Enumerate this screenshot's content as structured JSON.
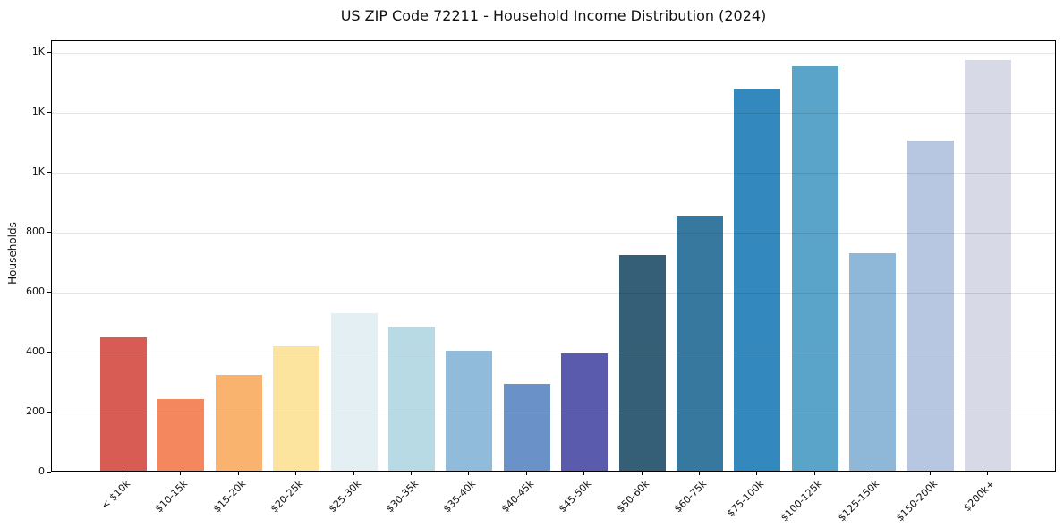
{
  "title": "US ZIP Code 72211 - Household Income Distribution (2024)",
  "chart_data": {
    "type": "bar",
    "title": "US ZIP Code 72211 - Household Income Distribution (2024)",
    "xlabel": "",
    "ylabel": "Households",
    "ylim": [
      0,
      1438
    ],
    "grid": true,
    "legend": "none",
    "categories": [
      "< $10k",
      "$10-15k",
      "$15-20k",
      "$20-25k",
      "$25-30k",
      "$30-35k",
      "$35-40k",
      "$40-45k",
      "$45-50k",
      "$50-60k",
      "$60-75k",
      "$75-100k",
      "$100-125k",
      "$125-150k",
      "$150-200k",
      "$200k+"
    ],
    "values": [
      445,
      240,
      320,
      415,
      525,
      480,
      400,
      290,
      390,
      720,
      850,
      1270,
      1350,
      725,
      1100,
      1370
    ],
    "bar_colors": [
      "#d85c54",
      "#f5875f",
      "#fab36e",
      "#fce49e",
      "#e3eff3",
      "#b7dae5",
      "#91bbda",
      "#6a92c9",
      "#5a5bac",
      "#345f76",
      "#37789e",
      "#3389bd",
      "#5aa4c9",
      "#8fb8d8",
      "#b8c7e1",
      "#d8d9e7"
    ],
    "yticks": {
      "values": [
        0,
        200,
        400,
        600,
        800,
        1000,
        1200,
        1400
      ],
      "labels": [
        "0",
        "200",
        "400",
        "600",
        "800",
        "1K",
        "1K",
        "1K"
      ]
    },
    "axis_color": "#000000",
    "gridline_color": "#e8e8e8",
    "background_color": "#ffffff"
  }
}
